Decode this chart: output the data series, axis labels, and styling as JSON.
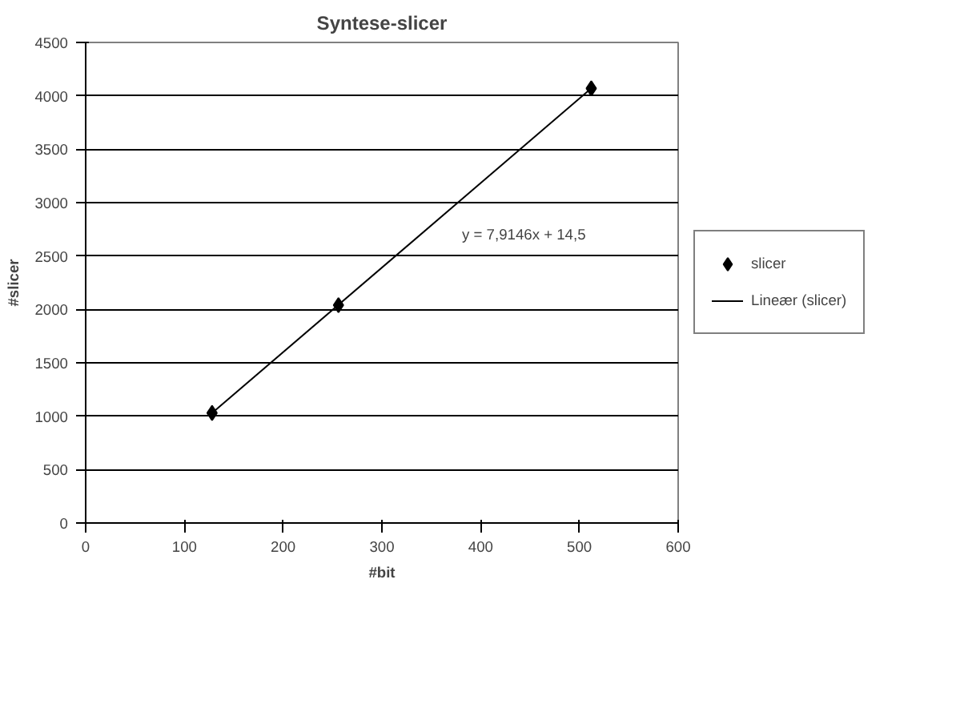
{
  "chart_data": {
    "type": "scatter",
    "title": "Syntese-slicer",
    "xlabel": "#bit",
    "ylabel": "#slicer",
    "xlim": [
      0,
      600
    ],
    "xticks": [
      0,
      100,
      200,
      300,
      400,
      500,
      600
    ],
    "ylim": [
      0,
      4500
    ],
    "yticks": [
      0,
      500,
      1000,
      1500,
      2000,
      2500,
      3000,
      3500,
      4000,
      4500
    ],
    "series": [
      {
        "name": "slicer",
        "color": "#000000",
        "marker": "diamond",
        "x": [
          128,
          256,
          512
        ],
        "values": [
          1030,
          2040,
          4070
        ]
      },
      {
        "name": "Lineær (slicer)",
        "type": "line",
        "color": "#000000",
        "marker": "none",
        "line_style": "solid",
        "x": [
          128,
          512
        ],
        "values": [
          1030,
          4070
        ]
      }
    ],
    "annotations": [
      "y = 7,9146x + 14,5"
    ],
    "grid": "y",
    "legend": "right"
  }
}
